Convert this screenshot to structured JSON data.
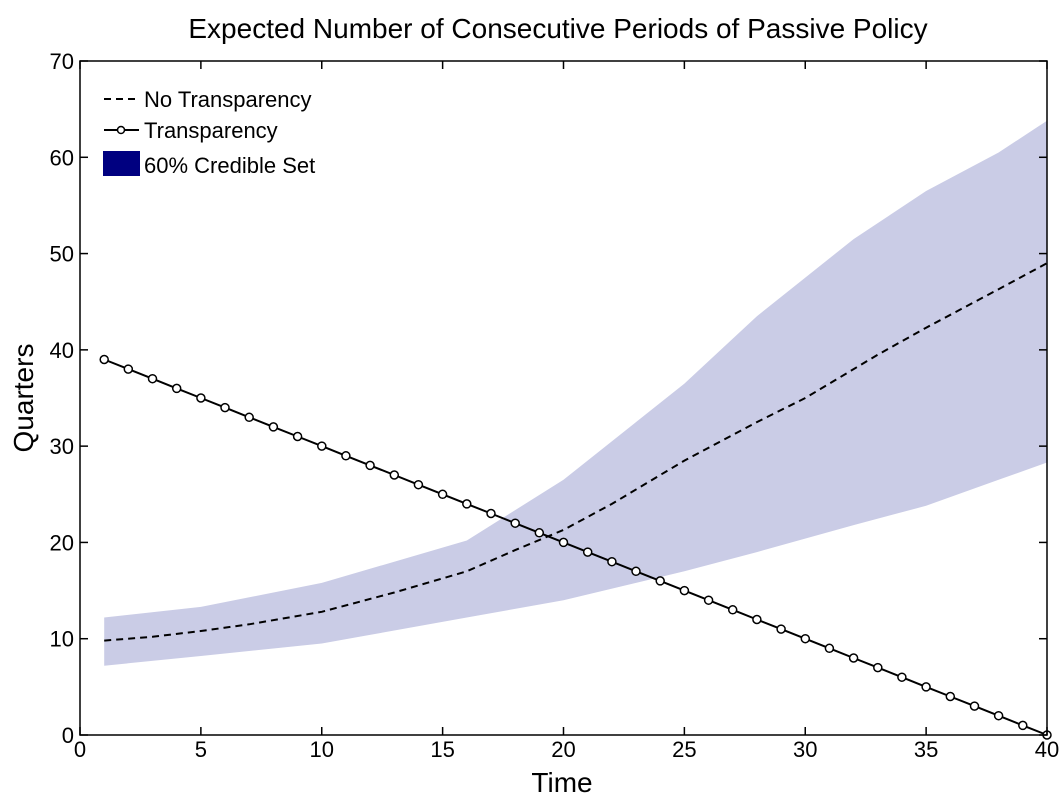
{
  "chart_data": {
    "type": "line",
    "title": "Expected Number of Consecutive Periods of Passive Policy",
    "xlabel": "Time",
    "ylabel": "Quarters",
    "xlim": [
      0,
      40
    ],
    "ylim": [
      0,
      70
    ],
    "xticks": [
      0,
      5,
      10,
      15,
      20,
      25,
      30,
      35,
      40
    ],
    "yticks": [
      0,
      10,
      20,
      30,
      40,
      50,
      60,
      70
    ],
    "grid": false,
    "legend_position": "top-left",
    "band": {
      "name": "60% Credible Set",
      "color": "#cacce6",
      "legend_color": "#000080",
      "x": [
        1,
        5,
        10,
        16,
        20,
        25,
        28,
        32,
        35,
        38,
        40
      ],
      "upper": [
        12.2,
        13.3,
        15.8,
        20.2,
        26.5,
        36.5,
        43.5,
        51.5,
        56.5,
        60.5,
        63.8
      ],
      "lower": [
        7.2,
        8.2,
        9.5,
        12.2,
        14.0,
        17.0,
        19.0,
        21.8,
        23.8,
        26.5,
        28.3
      ]
    },
    "series": [
      {
        "name": "No Transparency",
        "style": "dashed",
        "x": [
          1,
          3,
          5,
          7,
          10,
          13,
          16,
          18,
          20,
          22,
          25,
          28,
          30,
          33,
          35,
          38,
          40
        ],
        "y": [
          9.8,
          10.2,
          10.8,
          11.5,
          12.8,
          14.8,
          17.0,
          19.2,
          21.3,
          24.0,
          28.5,
          32.5,
          35.0,
          39.5,
          42.3,
          46.3,
          49.0
        ]
      },
      {
        "name": "Transparency",
        "style": "solid-marker",
        "x": [
          1,
          2,
          3,
          4,
          5,
          6,
          7,
          8,
          9,
          10,
          11,
          12,
          13,
          14,
          15,
          16,
          17,
          18,
          19,
          20,
          21,
          22,
          23,
          24,
          25,
          26,
          27,
          28,
          29,
          30,
          31,
          32,
          33,
          34,
          35,
          36,
          37,
          38,
          39,
          40
        ],
        "y": [
          39,
          38,
          37,
          36,
          35,
          34,
          33,
          32,
          31,
          30,
          29,
          28,
          27,
          26,
          25,
          24,
          23,
          22,
          21,
          20,
          19,
          18,
          17,
          16,
          15,
          14,
          13,
          12,
          11,
          10,
          9,
          8,
          7,
          6,
          5,
          4,
          3,
          2,
          1,
          0
        ]
      }
    ]
  }
}
